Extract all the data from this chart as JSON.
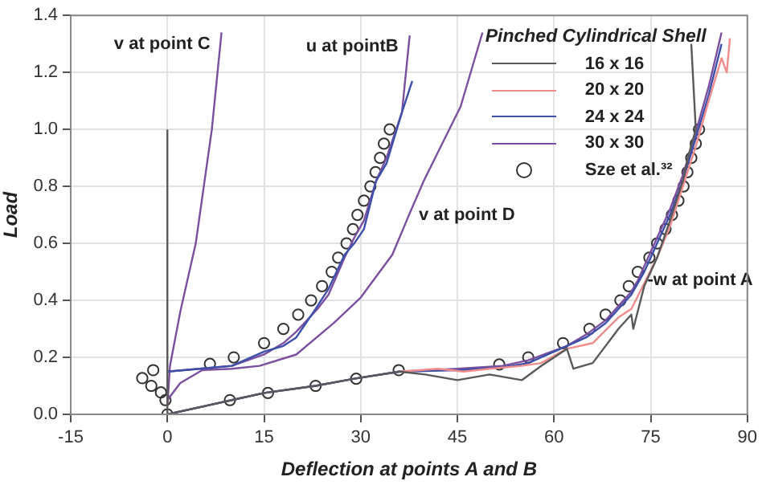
{
  "chart_data": {
    "type": "line",
    "xlabel": "Deflection at points A and B",
    "ylabel": "Load",
    "legend_title": "Pinched Cylindrical Shell",
    "legend": "top right",
    "grid": true,
    "line_style": "solid",
    "marker": "none",
    "xlim": [
      -15,
      90
    ],
    "xticks": [
      -15,
      0,
      15,
      30,
      45,
      60,
      75,
      90
    ],
    "ylim": [
      0,
      1.4
    ],
    "yticks": [
      {
        "value": 0,
        "label": "0.0"
      },
      {
        "value": 0.2,
        "label": "0.2"
      },
      {
        "value": 0.4,
        "label": "0.4"
      },
      {
        "value": 0.6,
        "label": "0.6"
      },
      {
        "value": 0.8,
        "label": "0.8"
      },
      {
        "value": 1,
        "label": "1.0"
      },
      {
        "value": 1.2,
        "label": "1.2"
      },
      {
        "value": 1.4,
        "label": "1.4"
      }
    ],
    "series": [
      {
        "name": "16 x 16",
        "color": "#595959",
        "x": [
          0,
          0,
          null,
          0,
          10,
          15,
          23,
          29,
          36,
          40,
          45,
          50,
          55,
          58,
          62,
          63,
          66,
          70,
          72,
          72.3,
          74,
          76,
          78,
          80,
          81,
          82,
          81.3
        ],
        "values": [
          0,
          1.0,
          null,
          0,
          0.05,
          0.075,
          0.1,
          0.125,
          0.15,
          0.14,
          0.12,
          0.14,
          0.12,
          0.17,
          0.23,
          0.16,
          0.18,
          0.3,
          0.35,
          0.3,
          0.45,
          0.55,
          0.68,
          0.82,
          0.92,
          1.0,
          1.3
        ]
      },
      {
        "name": "20 x 20",
        "color": "#f08c8c",
        "x": [
          36,
          42,
          46,
          50,
          55,
          58,
          62,
          66,
          70,
          72,
          74,
          76,
          78,
          80,
          82,
          84,
          86,
          86.8,
          87.3
        ],
        "values": [
          0.15,
          0.16,
          0.15,
          0.16,
          0.17,
          0.18,
          0.23,
          0.25,
          0.34,
          0.37,
          0.46,
          0.55,
          0.66,
          0.8,
          0.94,
          1.1,
          1.25,
          1.2,
          1.32
        ]
      },
      {
        "name": "24 x 24",
        "color": "#3d4fa8",
        "x": [
          0,
          5,
          10,
          15,
          18,
          20,
          23,
          25,
          27.5,
          29,
          30.5,
          32.4,
          34,
          36.4,
          38,
          null,
          0,
          10,
          15,
          23,
          29,
          36,
          45,
          52,
          56,
          62,
          65,
          68,
          70,
          72,
          74,
          76,
          78,
          80,
          82,
          84,
          86
        ],
        "values": [
          0.15,
          0.16,
          0.17,
          0.22,
          0.24,
          0.27,
          0.37,
          0.44,
          0.56,
          0.6,
          0.65,
          0.82,
          0.88,
          1.06,
          1.17,
          null,
          0,
          0.05,
          0.075,
          0.1,
          0.125,
          0.15,
          0.155,
          0.165,
          0.18,
          0.24,
          0.27,
          0.32,
          0.37,
          0.42,
          0.5,
          0.6,
          0.7,
          0.82,
          0.97,
          1.12,
          1.3
        ]
      },
      {
        "name": "30 x 30",
        "color": "#7b4fa0",
        "x": [
          0,
          0.4,
          2.0,
          4.4,
          6.9,
          8.4,
          null,
          0,
          2,
          5.4,
          10,
          14.3,
          20,
          25.8,
          30,
          34.9,
          37.5,
          39.8,
          45.5,
          48.9,
          null,
          0,
          5,
          10,
          15,
          18,
          20,
          23.3,
          25,
          27.5,
          29,
          30.5,
          32.4,
          34,
          36.4,
          37.6,
          null,
          0,
          10,
          15,
          23,
          29,
          36,
          45,
          52,
          56,
          62,
          65,
          68,
          70,
          72,
          73,
          74,
          76,
          78,
          80,
          82,
          84,
          86
        ],
        "values": [
          0.03,
          0.17,
          0.36,
          0.6,
          1.0,
          1.34,
          null,
          0.05,
          0.11,
          0.155,
          0.16,
          0.17,
          0.21,
          0.32,
          0.41,
          0.56,
          0.7,
          0.82,
          1.08,
          1.34,
          null,
          0.15,
          0.16,
          0.17,
          0.21,
          0.25,
          0.29,
          0.37,
          0.42,
          0.55,
          0.62,
          0.68,
          0.82,
          0.9,
          1.06,
          1.33,
          null,
          0,
          0.05,
          0.075,
          0.1,
          0.125,
          0.15,
          0.16,
          0.17,
          0.19,
          0.24,
          0.28,
          0.33,
          0.38,
          0.43,
          0.47,
          0.52,
          0.62,
          0.72,
          0.84,
          0.99,
          1.15,
          1.34
        ]
      },
      {
        "name": "Sze et al.³²",
        "type": "scatter",
        "marker": "circle",
        "color": "#333333",
        "x": [
          -3.9,
          -2.2,
          -2.5,
          -1.0,
          -0.3,
          0,
          6.6,
          10.3,
          15,
          18,
          20.3,
          22.3,
          24,
          25.5,
          26.5,
          27.8,
          28.8,
          29.5,
          30.5,
          31.5,
          32.3,
          33,
          33.6,
          34.5,
          9.7,
          15.6,
          23,
          29.3,
          35.9,
          51.5,
          56,
          61.4,
          65.5,
          68,
          70.3,
          71.6,
          73,
          74.8,
          76,
          77.3,
          78.3,
          79.3,
          80.1,
          80.7,
          81.3,
          82,
          82.5
        ],
        "values": [
          0.127,
          0.155,
          0.1,
          0.077,
          0.05,
          0,
          0.177,
          0.2,
          0.25,
          0.3,
          0.35,
          0.4,
          0.45,
          0.5,
          0.55,
          0.6,
          0.65,
          0.7,
          0.75,
          0.8,
          0.85,
          0.9,
          0.95,
          1.0,
          0.05,
          0.075,
          0.1,
          0.125,
          0.155,
          0.175,
          0.2,
          0.25,
          0.3,
          0.35,
          0.4,
          0.45,
          0.5,
          0.55,
          0.6,
          0.65,
          0.7,
          0.75,
          0.8,
          0.85,
          0.9,
          0.95,
          1.0
        ]
      }
    ],
    "annotations": [
      {
        "text": "v at point C",
        "x": 8.4,
        "y": 1.34
      },
      {
        "text": "u at pointB",
        "x": 37.6,
        "y": 1.33
      },
      {
        "text": "v at point D",
        "x": 37.5,
        "y": 0.7
      },
      {
        "text": "-w at point A",
        "x": 73,
        "y": 0.47
      }
    ]
  }
}
